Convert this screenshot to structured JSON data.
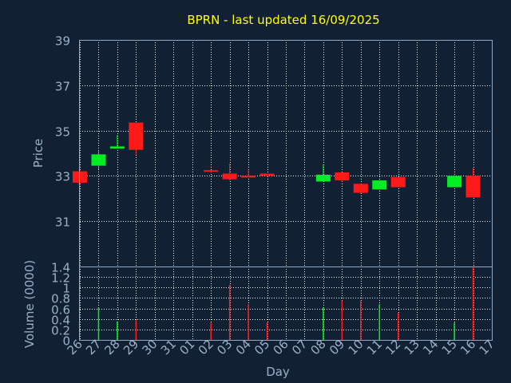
{
  "colors": {
    "background": "#112033",
    "title": "#ffff00",
    "axis_text": "#9ab0c7",
    "up": "#00ee22",
    "down": "#ff1a1a"
  },
  "chart_data": [
    {
      "type": "candlestick",
      "title": "BPRN - last updated 16/09/2025",
      "ylabel": "Price",
      "xlabel": "",
      "ylim": [
        29,
        39
      ],
      "yticks": [
        "31",
        "33",
        "35",
        "37",
        "39"
      ],
      "grid": true,
      "categories": [
        "26",
        "27",
        "28",
        "29",
        "30",
        "31",
        "01",
        "02",
        "03",
        "04",
        "05",
        "06",
        "07",
        "08",
        "09",
        "10",
        "11",
        "12",
        "13",
        "14",
        "15",
        "16",
        "17"
      ],
      "candles": [
        {
          "x": "26",
          "open": 33.2,
          "high": 33.25,
          "low": 32.65,
          "close": 32.7
        },
        {
          "x": "27",
          "open": 33.45,
          "high": 34.15,
          "low": 33.3,
          "close": 33.95
        },
        {
          "x": "28",
          "open": 34.2,
          "high": 34.8,
          "low": 34.2,
          "close": 34.3
        },
        {
          "x": "29",
          "open": 35.35,
          "high": 35.35,
          "low": 33.95,
          "close": 34.15
        },
        {
          "x": "02",
          "open": 33.25,
          "high": 33.25,
          "low": 33.15,
          "close": 33.2
        },
        {
          "x": "03",
          "open": 33.1,
          "high": 33.55,
          "low": 32.8,
          "close": 32.85
        },
        {
          "x": "04",
          "open": 33.0,
          "high": 33.3,
          "low": 32.95,
          "close": 32.98
        },
        {
          "x": "05",
          "open": 33.1,
          "high": 33.1,
          "low": 32.95,
          "close": 33.0
        },
        {
          "x": "08",
          "open": 32.75,
          "high": 33.5,
          "low": 32.75,
          "close": 33.05
        },
        {
          "x": "09",
          "open": 33.15,
          "high": 33.15,
          "low": 32.75,
          "close": 32.8
        },
        {
          "x": "10",
          "open": 32.65,
          "high": 32.65,
          "low": 32.2,
          "close": 32.25
        },
        {
          "x": "11",
          "open": 32.4,
          "high": 32.8,
          "low": 32.4,
          "close": 32.8
        },
        {
          "x": "12",
          "open": 32.95,
          "high": 32.95,
          "low": 32.5,
          "close": 32.5
        },
        {
          "x": "15",
          "open": 32.5,
          "high": 33.0,
          "low": 32.5,
          "close": 33.0
        },
        {
          "x": "16",
          "open": 33.0,
          "high": 33.35,
          "low": 32.05,
          "close": 32.05
        }
      ]
    },
    {
      "type": "bar",
      "ylabel": "Volume (0000)",
      "xlabel": "Day",
      "ylim": [
        0,
        1.4
      ],
      "yticks": [
        "0",
        "0.2",
        "0.4",
        "0.6",
        "0.8",
        "1",
        "1.2",
        "1.4"
      ],
      "grid": true,
      "categories": [
        "26",
        "27",
        "28",
        "29",
        "30",
        "31",
        "01",
        "02",
        "03",
        "04",
        "05",
        "06",
        "07",
        "08",
        "09",
        "10",
        "11",
        "12",
        "13",
        "14",
        "15",
        "16",
        "17"
      ],
      "bars": [
        {
          "x": "27",
          "value": 0.62,
          "dir": "up"
        },
        {
          "x": "28",
          "value": 0.35,
          "dir": "up"
        },
        {
          "x": "29",
          "value": 0.38,
          "dir": "down"
        },
        {
          "x": "02",
          "value": 0.33,
          "dir": "down"
        },
        {
          "x": "03",
          "value": 1.05,
          "dir": "down"
        },
        {
          "x": "04",
          "value": 0.68,
          "dir": "down"
        },
        {
          "x": "05",
          "value": 0.33,
          "dir": "down"
        },
        {
          "x": "08",
          "value": 0.62,
          "dir": "up"
        },
        {
          "x": "09",
          "value": 0.75,
          "dir": "down"
        },
        {
          "x": "10",
          "value": 0.75,
          "dir": "down"
        },
        {
          "x": "11",
          "value": 0.68,
          "dir": "up"
        },
        {
          "x": "12",
          "value": 0.52,
          "dir": "down"
        },
        {
          "x": "15",
          "value": 0.33,
          "dir": "up"
        },
        {
          "x": "16",
          "value": 1.4,
          "dir": "down"
        }
      ]
    }
  ]
}
